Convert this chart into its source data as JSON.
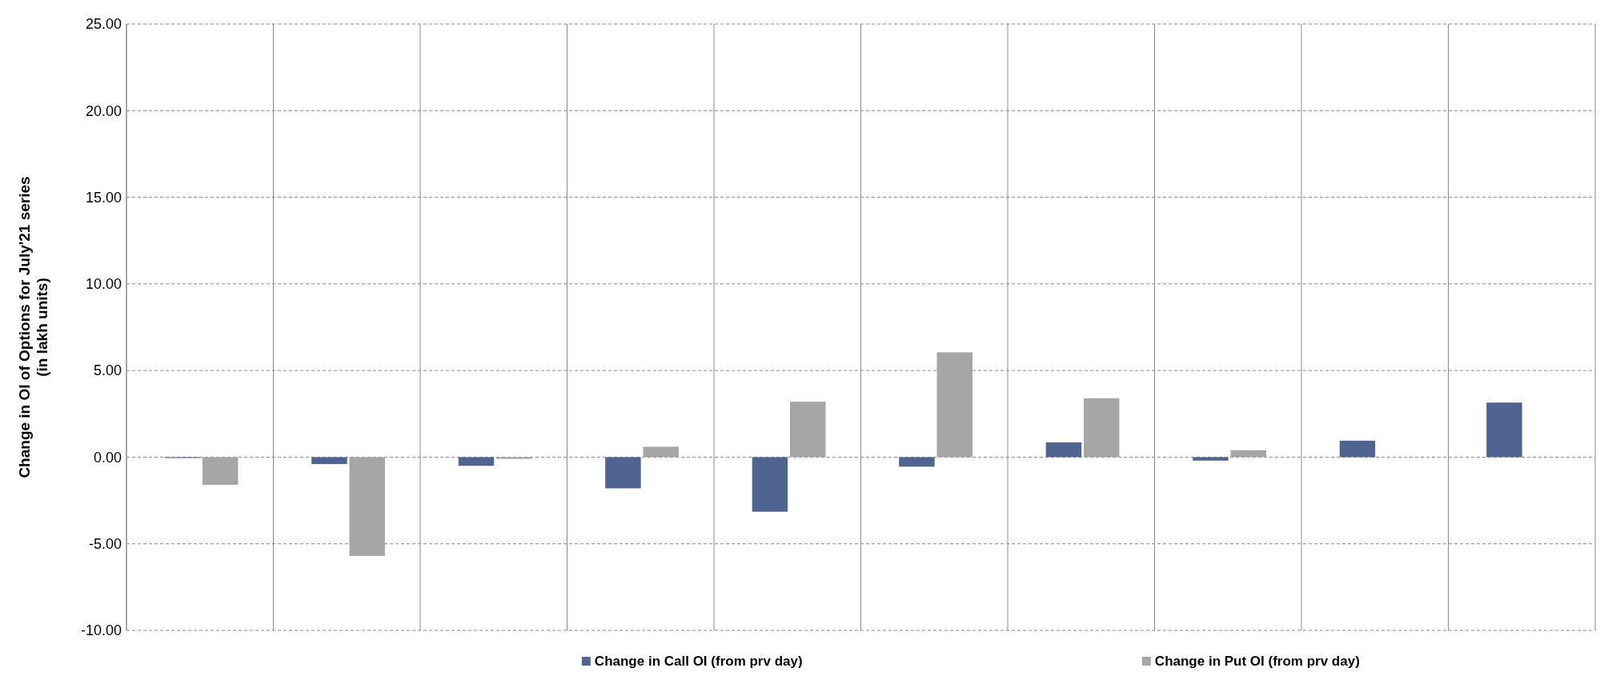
{
  "chart_data": {
    "type": "bar",
    "ylabel": "Change in OI of Options for July'21 series\n(in lakh units)",
    "categories": [
      null,
      null,
      null,
      null,
      null,
      null,
      null,
      null,
      null,
      null
    ],
    "series": [
      {
        "name": "Change in Call OI (from prv day)",
        "color": "#4f6491",
        "values": [
          -0.05,
          -0.4,
          -0.5,
          -1.8,
          -3.15,
          -0.55,
          0.85,
          -0.2,
          0.95,
          3.15
        ]
      },
      {
        "name": "Change in Put OI (from prv day)",
        "color": "#a6a6a6",
        "values": [
          -1.6,
          -5.7,
          -0.1,
          0.6,
          3.2,
          6.05,
          3.4,
          0.4,
          null,
          null
        ]
      }
    ],
    "ylim": [
      -10,
      25
    ],
    "yticks": [
      {
        "value": -10,
        "label": "-10.00"
      },
      {
        "value": -5,
        "label": "-5.00"
      },
      {
        "value": 0,
        "label": "0.00"
      },
      {
        "value": 5,
        "label": "5.00"
      },
      {
        "value": 10,
        "label": "10.00"
      },
      {
        "value": 15,
        "label": "15.00"
      },
      {
        "value": 20,
        "label": "20.00"
      },
      {
        "value": 25,
        "label": "25.00"
      }
    ],
    "grid": true,
    "legend": "bottom"
  }
}
